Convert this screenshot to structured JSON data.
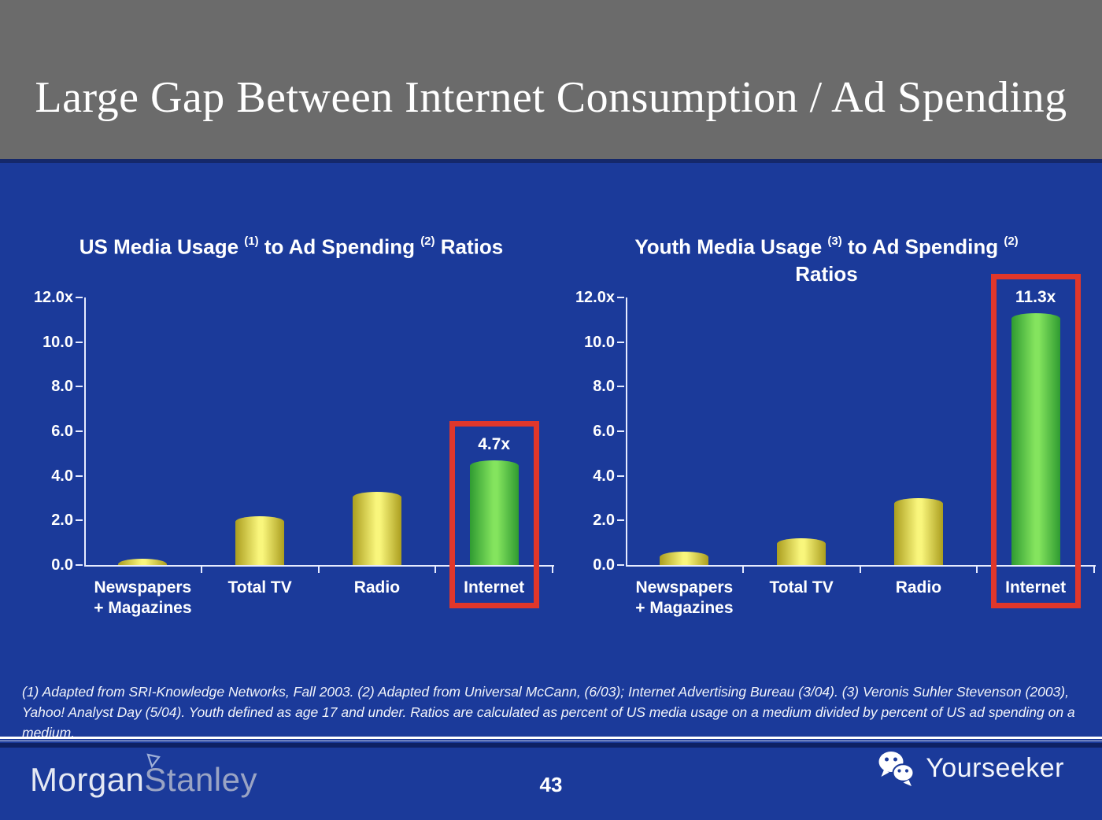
{
  "slide": {
    "header": {
      "title": "Large Gap Between Internet Consumption / Ad Spending"
    },
    "footnote": "(1) Adapted from SRI-Knowledge Networks, Fall 2003.  (2) Adapted from Universal McCann, (6/03); Internet Advertising Bureau (3/04). (3) Veronis Suhler Stevenson (2003), Yahoo! Analyst Day (5/04).  Youth defined as age 17 and under.  Ratios are calculated as percent of US media usage on a medium divided by percent of US ad spending on a medium.",
    "footer": {
      "brand_first": "Morgan",
      "brand_second": "Stanley",
      "page_number": "43",
      "watermark": "Yourseeker",
      "watermark_icon": "wechat-icon"
    }
  },
  "chart_data": [
    {
      "type": "bar",
      "title": "US Media Usage (1) to Ad Spending (2) Ratios",
      "title_parts": [
        "US Media Usage ",
        "(1)",
        " to Ad Spending ",
        "(2)",
        " Ratios"
      ],
      "title_line2": "",
      "categories": [
        "Newspapers\n+ Magazines",
        "Total TV",
        "Radio",
        "Internet"
      ],
      "values": [
        0.3,
        2.2,
        3.3,
        4.7
      ],
      "bar_palette": [
        "yellow",
        "yellow",
        "yellow",
        "green"
      ],
      "annotations": [
        {
          "category_index": 3,
          "text": "4.7x"
        }
      ],
      "highlight": {
        "category_index": 3,
        "style": "red-box"
      },
      "y_tick_labels": [
        "12.0x",
        "10.0",
        "8.0",
        "6.0",
        "4.0",
        "2.0",
        "0.0"
      ],
      "ylim": [
        0,
        12
      ],
      "ytick_step": 2,
      "xlabel": "",
      "ylabel": "",
      "grid": false,
      "legend": false
    },
    {
      "type": "bar",
      "title": "Youth Media Usage (3) to Ad Spending (2) Ratios",
      "title_parts": [
        "Youth Media Usage ",
        "(3)",
        " to Ad Spending ",
        "(2)",
        ""
      ],
      "title_line2": "Ratios",
      "categories": [
        "Newspapers\n+ Magazines",
        "Total TV",
        "Radio",
        "Internet"
      ],
      "values": [
        0.6,
        1.2,
        3.0,
        11.3
      ],
      "bar_palette": [
        "yellow",
        "yellow",
        "yellow",
        "green"
      ],
      "annotations": [
        {
          "category_index": 3,
          "text": "11.3x"
        }
      ],
      "highlight": {
        "category_index": 3,
        "style": "red-box"
      },
      "y_tick_labels": [
        "12.0x",
        "10.0",
        "8.0",
        "6.0",
        "4.0",
        "2.0",
        "0.0"
      ],
      "ylim": [
        0,
        12
      ],
      "ytick_step": 2,
      "xlabel": "",
      "ylabel": "",
      "grid": false,
      "legend": false
    }
  ],
  "colors": {
    "slide_background": "#1b3a9a",
    "header_background": "#6b6b6b",
    "top_divider_navy": "#15286a",
    "axis": "#e6ebff",
    "bar_yellow_edge": "#ab9e1f",
    "bar_yellow_mid": "#f9f67c",
    "bar_green_edge": "#2f9b31",
    "bar_green_mid": "#84e45e",
    "highlight_red": "#e0372b",
    "footer_divider_navy": "#0e2163",
    "brand_first_color": "#e4e8f3",
    "brand_second_color": "#9aa4c4"
  }
}
